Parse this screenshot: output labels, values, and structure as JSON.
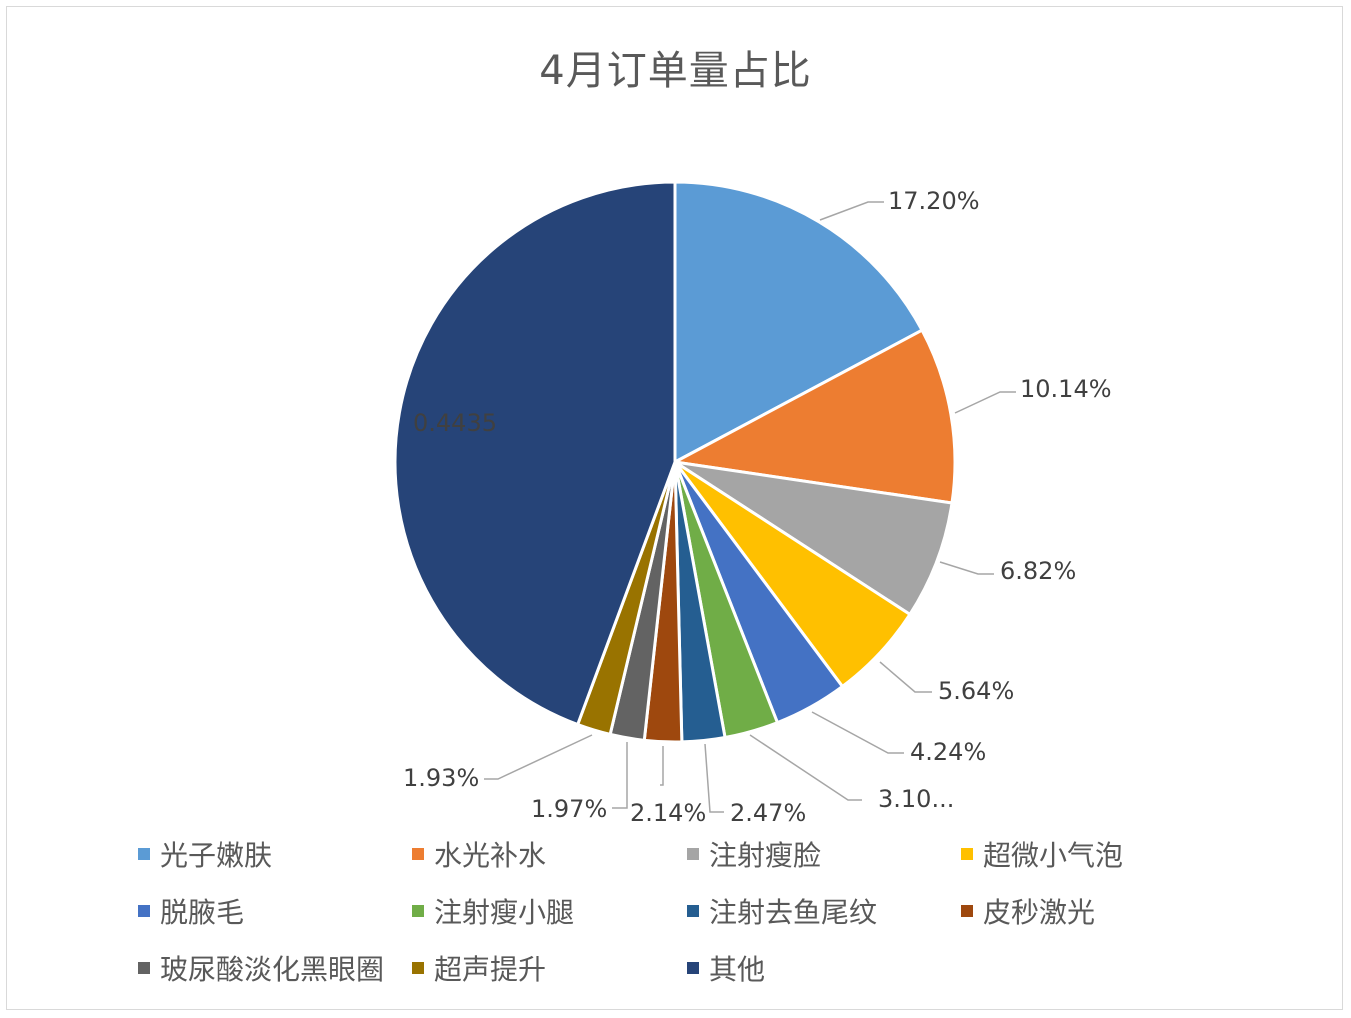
{
  "chart_data": {
    "type": "pie",
    "title": "4月订单量占比",
    "legend_position": "bottom",
    "slices": [
      {
        "name": "光子嫩肤",
        "value": 17.2,
        "label": "17.20%",
        "color": "#5B9BD5"
      },
      {
        "name": "水光补水",
        "value": 10.14,
        "label": "10.14%",
        "color": "#ED7D31"
      },
      {
        "name": "注射瘦脸",
        "value": 6.82,
        "label": "6.82%",
        "color": "#A5A5A5"
      },
      {
        "name": "超微小气泡",
        "value": 5.64,
        "label": "5.64%",
        "color": "#FFC000"
      },
      {
        "name": "脱腋毛",
        "value": 4.24,
        "label": "4.24%",
        "color": "#4472C4"
      },
      {
        "name": "注射瘦小腿",
        "value": 3.1,
        "label": "3.10...",
        "color": "#70AD47"
      },
      {
        "name": "注射去鱼尾纹",
        "value": 2.47,
        "label": "2.47%",
        "color": "#255E91"
      },
      {
        "name": "皮秒激光",
        "value": 2.14,
        "label": "2.14%",
        "color": "#9E480E"
      },
      {
        "name": "玻尿酸淡化黑眼圈",
        "value": 1.97,
        "label": "1.97%",
        "color": "#636363"
      },
      {
        "name": "超声提升",
        "value": 1.93,
        "label": "1.93%",
        "color": "#997300"
      },
      {
        "name": "其他",
        "value": 44.35,
        "label": "0.4435",
        "color": "#264478"
      }
    ]
  }
}
